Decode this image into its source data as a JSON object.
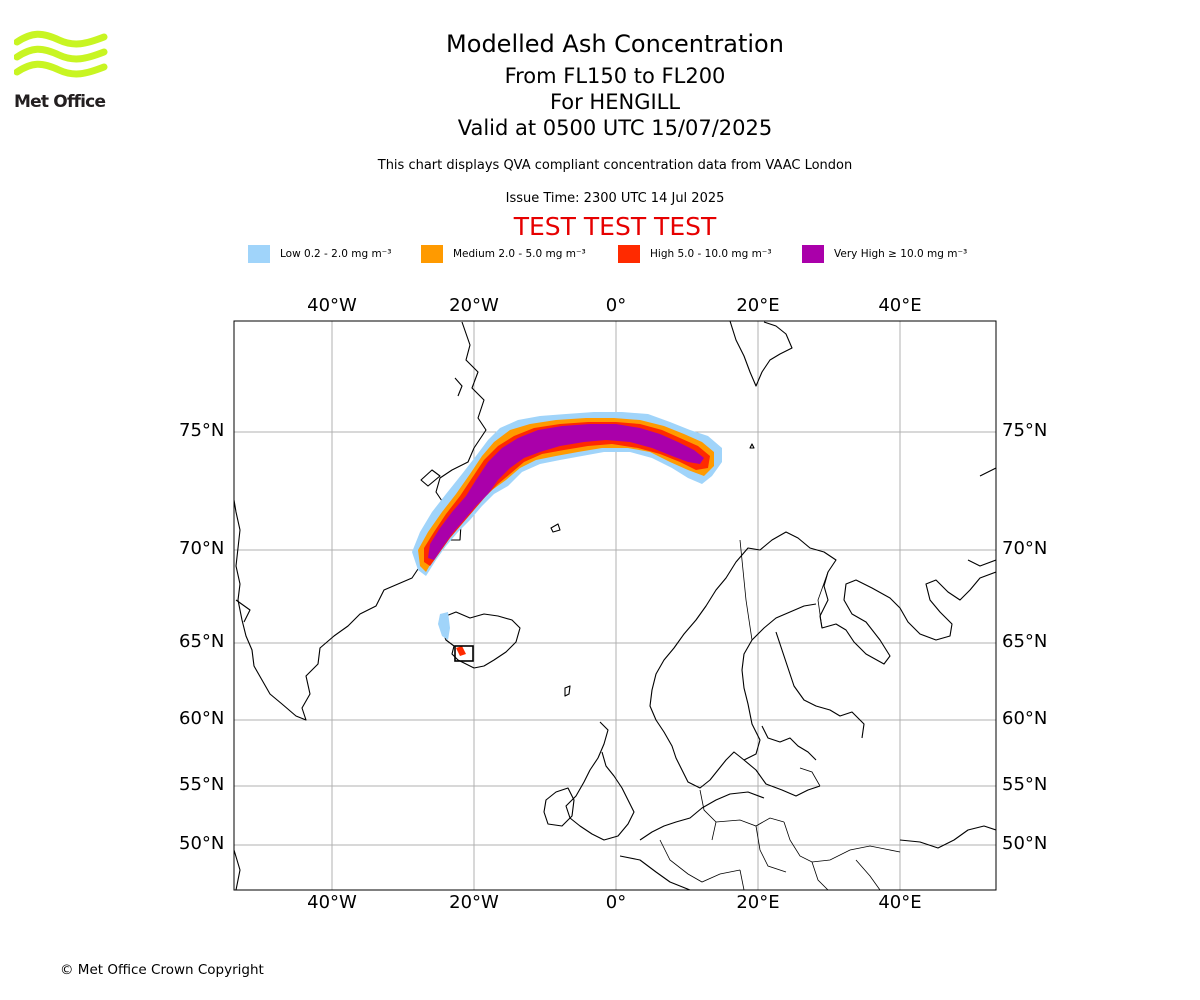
{
  "header": {
    "logo_text": "Met Office",
    "title": "Modelled Ash Concentration",
    "levels": "From FL150 to FL200",
    "location": "For HENGILL",
    "valid": "Valid at 0500 UTC 15/07/2025",
    "description": "This chart displays QVA compliant concentration data from VAAC London",
    "issue_time": "Issue Time: 2300 UTC 14 Jul 2025",
    "test_banner": "TEST TEST TEST"
  },
  "legend": [
    {
      "label": "Low 0.2 - 2.0 mg m⁻³",
      "color": "#a0d4fa"
    },
    {
      "label": "Medium 2.0 - 5.0 mg m⁻³",
      "color": "#ff9a00"
    },
    {
      "label": "High 5.0 - 10.0 mg m⁻³",
      "color": "#ff2a00"
    },
    {
      "label": "Very High ≥ 10.0 mg m⁻³",
      "color": "#aa00aa"
    }
  ],
  "map": {
    "lon_labels": [
      "40°W",
      "20°W",
      "0°",
      "20°E",
      "40°E"
    ],
    "lat_labels": [
      "75°N",
      "70°N",
      "65°N",
      "60°N",
      "55°N",
      "50°N"
    ]
  },
  "footer": {
    "copyright": "© Met Office Crown Copyright"
  }
}
